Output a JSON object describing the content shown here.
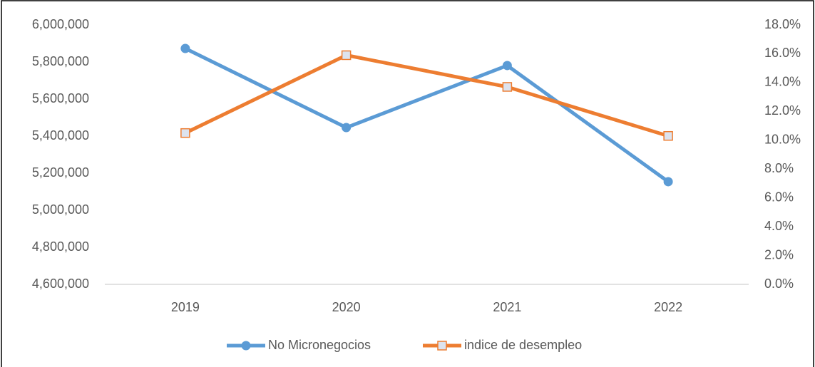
{
  "chart_data": {
    "type": "line",
    "categories": [
      "2019",
      "2020",
      "2021",
      "2022"
    ],
    "series": [
      {
        "name": "No Micronegocios",
        "color": "#5b9bd5",
        "marker": "circle",
        "values": [
          5873000,
          5446000,
          5781000,
          5154000
        ]
      },
      {
        "name": "indice de desempleo",
        "color": "#ed7d31",
        "marker": "square",
        "axis": "y2",
        "values": [
          10.5,
          15.9,
          13.7,
          10.3
        ]
      }
    ],
    "ylim": [
      4600000,
      6000000
    ],
    "yticks": [
      {
        "value": 4600000,
        "label": "4,600,000"
      },
      {
        "value": 4800000,
        "label": "4,800,000"
      },
      {
        "value": 5000000,
        "label": "5,000,000"
      },
      {
        "value": 5200000,
        "label": "5,200,000"
      },
      {
        "value": 5400000,
        "label": "5,400,000"
      },
      {
        "value": 5600000,
        "label": "5,600,000"
      },
      {
        "value": 5800000,
        "label": "5,800,000"
      },
      {
        "value": 6000000,
        "label": "6,000,000"
      }
    ],
    "y2lim": [
      0,
      18
    ],
    "y2ticks": [
      {
        "value": 0,
        "label": "0.0%"
      },
      {
        "value": 2,
        "label": "2.0%"
      },
      {
        "value": 4,
        "label": "4.0%"
      },
      {
        "value": 6,
        "label": "6.0%"
      },
      {
        "value": 8,
        "label": "8.0%"
      },
      {
        "value": 10,
        "label": "10.0%"
      },
      {
        "value": 12,
        "label": "12.0%"
      },
      {
        "value": 14,
        "label": "14.0%"
      },
      {
        "value": 16,
        "label": "16.0%"
      },
      {
        "value": 18,
        "label": "18.0%"
      }
    ],
    "grid": false,
    "legend": "bottom"
  }
}
